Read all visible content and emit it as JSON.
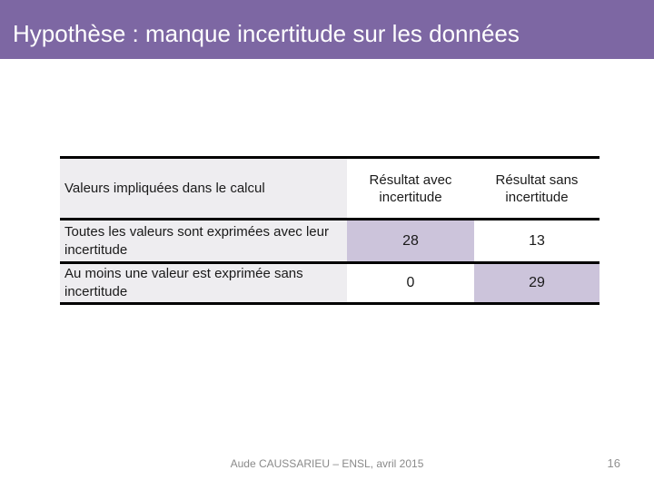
{
  "slide": {
    "title": "Hypothèse : manque incertitude sur les données",
    "footer": {
      "credit": "Aude CAUSSARIEU – ENSL, avril 2015",
      "page_number": "16"
    }
  },
  "table": {
    "header": {
      "col1": "Valeurs impliquées dans le calcul",
      "col2": "Résultat avec incertitude",
      "col3": "Résultat sans incertitude"
    },
    "rows": [
      {
        "label": "Toutes les valeurs sont exprimées avec leur incertitude",
        "avec": "28",
        "sans": "13",
        "highlight": "avec"
      },
      {
        "label": "Au moins une valeur est exprimée sans incertitude",
        "avec": "0",
        "sans": "29",
        "highlight": "sans"
      }
    ]
  },
  "colors": {
    "title_bar_purple": "#7D67A3",
    "highlight_cell_purple": "#CCC4DB",
    "label_column_gray": "#EEEDF0",
    "footer_gray": "#8A8A8A",
    "border_black": "#000000"
  }
}
